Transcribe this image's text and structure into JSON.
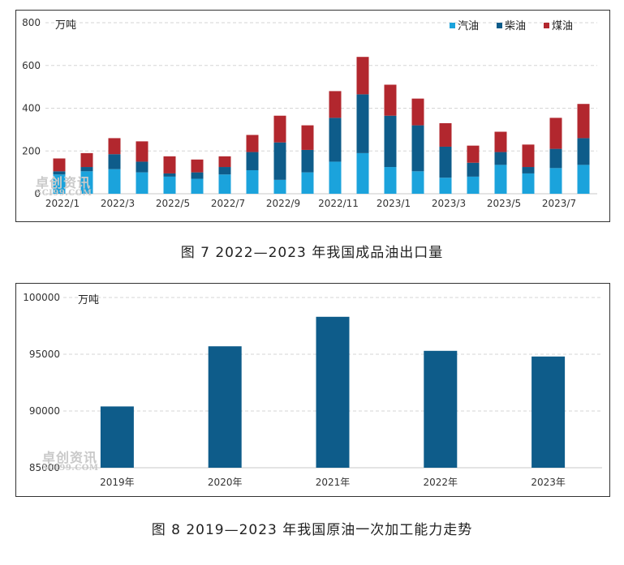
{
  "figures": [
    {
      "caption": "图 7 2022—2023 年我国成品油出口量"
    },
    {
      "caption": "图 8 2019—2023 年我国原油一次加工能力走势"
    }
  ],
  "watermark": {
    "text": "卓创资讯",
    "sub": "SCI99.COM"
  },
  "chart_data": [
    {
      "type": "bar",
      "stacked": true,
      "unit_label": "万吨",
      "ylim": [
        0,
        800
      ],
      "yticks": [
        0,
        200,
        400,
        600,
        800
      ],
      "grid": "horizontal dashed",
      "legend_position": "top-right",
      "categories": [
        "2022/1",
        "2022/2",
        "2022/3",
        "2022/4",
        "2022/5",
        "2022/6",
        "2022/7",
        "2022/8",
        "2022/9",
        "2022/10",
        "2022/11",
        "2022/12",
        "2023/1",
        "2023/2",
        "2023/3",
        "2023/4",
        "2023/5",
        "2023/6",
        "2023/7",
        "2023/8"
      ],
      "xtick_labels": [
        "2022/1",
        "2022/3",
        "2022/5",
        "2022/7",
        "2022/9",
        "2022/11",
        "2023/1",
        "2023/3",
        "2023/5",
        "2023/7"
      ],
      "series": [
        {
          "name": "汽油",
          "color": "#1ba3dc",
          "values": [
            90,
            105,
            115,
            100,
            80,
            70,
            90,
            110,
            65,
            100,
            150,
            190,
            125,
            105,
            75,
            80,
            135,
            95,
            120,
            135
          ]
        },
        {
          "name": "柴油",
          "color": "#0e5c8a",
          "values": [
            15,
            20,
            70,
            50,
            15,
            30,
            35,
            85,
            175,
            105,
            205,
            275,
            240,
            215,
            145,
            65,
            60,
            30,
            90,
            125
          ]
        },
        {
          "name": "煤油",
          "color": "#b2272e",
          "values": [
            60,
            65,
            75,
            95,
            80,
            60,
            50,
            80,
            125,
            115,
            125,
            175,
            145,
            125,
            110,
            80,
            95,
            105,
            145,
            160
          ]
        }
      ]
    },
    {
      "type": "bar",
      "unit_label": "万吨",
      "ylim": [
        85000,
        100000
      ],
      "yticks": [
        85000,
        90000,
        95000,
        100000
      ],
      "grid": "horizontal dashed",
      "categories": [
        "2019年",
        "2020年",
        "2021年",
        "2022年",
        "2023年"
      ],
      "series": [
        {
          "color": "#0e5c8a",
          "values": [
            90400,
            95700,
            98300,
            95300,
            94800
          ]
        }
      ]
    }
  ]
}
